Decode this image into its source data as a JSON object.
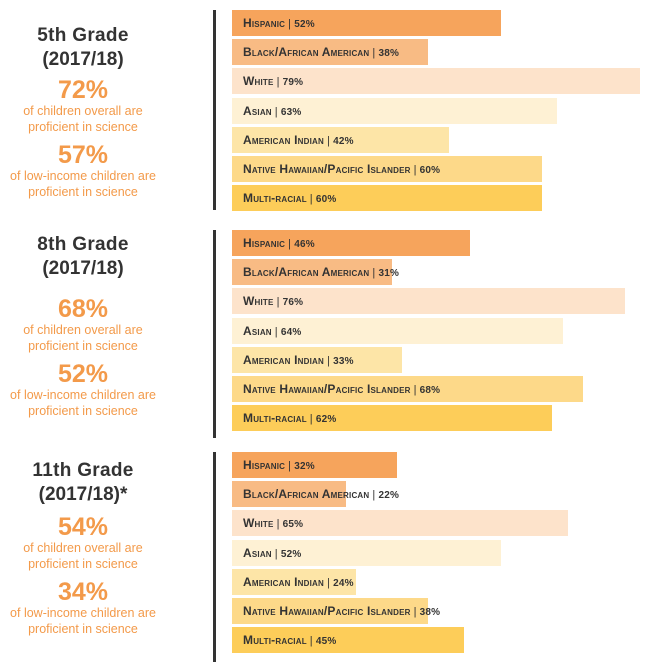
{
  "chart_data": [
    {
      "type": "bar",
      "orientation": "horizontal",
      "title_line1": "5th Grade",
      "title_line2": "(2017/18)",
      "overall_pct": "72%",
      "overall_desc_line1": "of children overall are",
      "overall_desc_line2": "proficient in science",
      "lowincome_pct": "57%",
      "lowincome_desc_line1": "of low-income children are",
      "lowincome_desc_line2": "proficient in science",
      "categories": [
        "Hispanic",
        "Black/African American",
        "White",
        "Asian",
        "American Indian",
        "Native Hawaiian/Pacific Islander",
        "Multi-racial"
      ],
      "values": [
        52,
        38,
        79,
        63,
        42,
        60,
        60
      ],
      "value_labels": [
        "52%",
        "38%",
        "79%",
        "63%",
        "42%",
        "60%",
        "60%"
      ],
      "xlim": [
        0,
        80
      ]
    },
    {
      "type": "bar",
      "orientation": "horizontal",
      "title_line1": "8th Grade",
      "title_line2": "(2017/18)",
      "overall_pct": "68%",
      "overall_desc_line1": "of children overall are",
      "overall_desc_line2": "proficient in science",
      "lowincome_pct": "52%",
      "lowincome_desc_line1": "of low-income children are",
      "lowincome_desc_line2": "proficient in science",
      "categories": [
        "Hispanic",
        "Black/African American",
        "White",
        "Asian",
        "American Indian",
        "Native Hawaiian/Pacific Islander",
        "Multi-racial"
      ],
      "values": [
        46,
        31,
        76,
        64,
        33,
        68,
        62
      ],
      "value_labels": [
        "46%",
        "31%",
        "76%",
        "64%",
        "33%",
        "68%",
        "62%"
      ],
      "xlim": [
        0,
        80
      ]
    },
    {
      "type": "bar",
      "orientation": "horizontal",
      "title_line1": "11th Grade",
      "title_line2": "(2017/18)*",
      "overall_pct": "54%",
      "overall_desc_line1": "of children overall are",
      "overall_desc_line2": "proficient in science",
      "lowincome_pct": "34%",
      "lowincome_desc_line1": "of low-income children are",
      "lowincome_desc_line2": "proficient in science",
      "categories": [
        "Hispanic",
        "Black/African American",
        "White",
        "Asian",
        "American Indian",
        "Native Hawaiian/Pacific Islander",
        "Multi-racial"
      ],
      "values": [
        32,
        22,
        65,
        52,
        24,
        38,
        45
      ],
      "value_labels": [
        "32%",
        "22%",
        "65%",
        "52%",
        "24%",
        "38%",
        "45%"
      ],
      "xlim": [
        0,
        80
      ]
    }
  ],
  "colors": {
    "Hispanic": "#f6a45c",
    "Black/African American": "#f8bb84",
    "White": "#fde3cb",
    "Asian": "#fef1d4",
    "American Indian": "#fde5a7",
    "Native Hawaiian/Pacific Islander": "#fdd989",
    "Multi-racial": "#fdcd59",
    "heading": "#333333",
    "accent": "#f39a4a",
    "divider": "#333333"
  }
}
